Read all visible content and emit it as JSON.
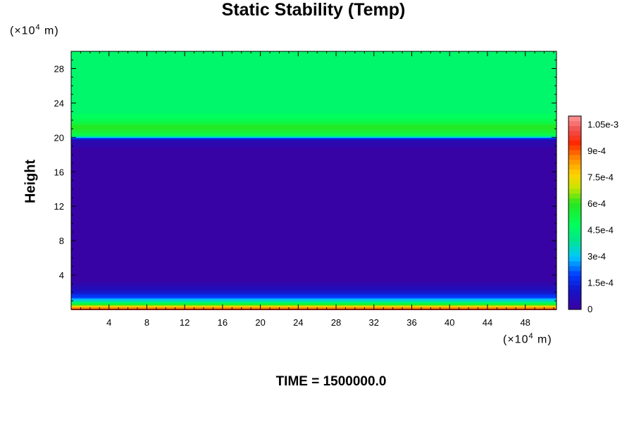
{
  "chart_data": {
    "type": "heatmap",
    "title": "Static Stability (Temp)",
    "ylabel": "Height",
    "y_unit": {
      "prefix": "(×10",
      "exp": "4",
      "suffix": " m)"
    },
    "x_unit": {
      "prefix": "(×10",
      "exp": "4",
      "suffix": " m)"
    },
    "time_label": "TIME = 1500000.0",
    "xlim": [
      0,
      51.3
    ],
    "ylim": [
      0,
      30
    ],
    "x_ticks": [
      4,
      8,
      12,
      16,
      20,
      24,
      28,
      32,
      36,
      40,
      44,
      48
    ],
    "y_ticks": [
      4,
      8,
      12,
      16,
      20,
      24,
      28
    ],
    "colorbar": {
      "range": [
        0,
        0.0011
      ],
      "tick_labels": [
        "0",
        "1.5e-4",
        "3e-4",
        "4.5e-4",
        "6e-4",
        "7.5e-4",
        "9e-4",
        "1.05e-3"
      ],
      "tick_values": [
        0,
        0.00015,
        0.0003,
        0.00045,
        0.0006,
        0.00075,
        0.0009,
        0.00105
      ]
    },
    "profile": [
      {
        "y": 0.0,
        "v": 0.00095
      },
      {
        "y": 0.3,
        "v": 0.0008
      },
      {
        "y": 0.6,
        "v": 0.00055
      },
      {
        "y": 1.0,
        "v": 0.00035
      },
      {
        "y": 1.4,
        "v": 0.0002
      },
      {
        "y": 1.9,
        "v": 0.00012
      },
      {
        "y": 2.4,
        "v": 7e-05
      },
      {
        "y": 3.0,
        "v": 3e-05
      },
      {
        "y": 3.8,
        "v": 2e-05
      },
      {
        "y": 6.0,
        "v": 1e-05
      },
      {
        "y": 9.0,
        "v": 2e-05
      },
      {
        "y": 11.0,
        "v": 1e-05
      },
      {
        "y": 14.0,
        "v": 2e-05
      },
      {
        "y": 16.0,
        "v": 1e-05
      },
      {
        "y": 18.5,
        "v": 2e-05
      },
      {
        "y": 19.5,
        "v": 4e-05
      },
      {
        "y": 19.8,
        "v": 0.00012
      },
      {
        "y": 20.0,
        "v": 0.0003
      },
      {
        "y": 20.2,
        "v": 0.0005
      },
      {
        "y": 20.6,
        "v": 0.00055
      },
      {
        "y": 21.2,
        "v": 0.0006
      },
      {
        "y": 22.0,
        "v": 0.0005
      },
      {
        "y": 23.0,
        "v": 0.00046
      },
      {
        "y": 26.0,
        "v": 0.00045
      },
      {
        "y": 30.0,
        "v": 0.00045
      }
    ]
  }
}
